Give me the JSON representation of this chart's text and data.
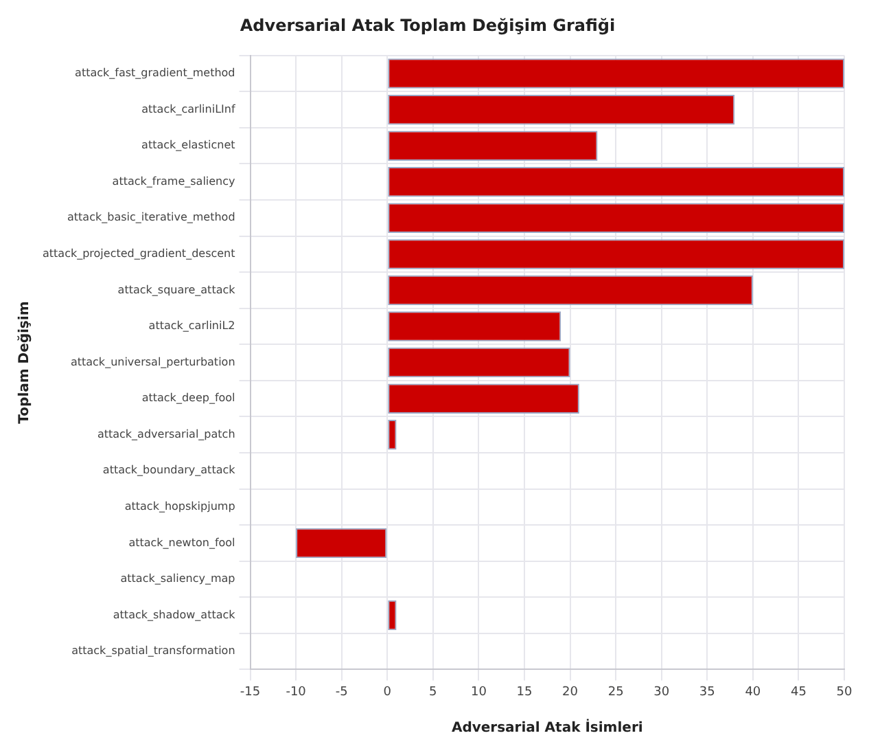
{
  "chart_data": {
    "type": "bar",
    "orientation": "horizontal",
    "title": "Adversarial Atak Toplam Değişim Grafiği",
    "xlabel": "Adversarial Atak İsimleri",
    "ylabel": "Toplam Değişim",
    "categories": [
      "attack_fast_gradient_method",
      "attack_carliniLInf",
      "attack_elasticnet",
      "attack_frame_saliency",
      "attack_basic_iterative_method",
      "attack_projected_gradient_descent",
      "attack_square_attack",
      "attack_carliniL2",
      "attack_universal_perturbation",
      "attack_deep_fool",
      "attack_adversarial_patch",
      "attack_boundary_attack",
      "attack_hopskipjump",
      "attack_newton_fool",
      "attack_saliency_map",
      "attack_shadow_attack",
      "attack_spatial_transformation"
    ],
    "values": [
      50,
      38,
      23,
      50,
      50,
      50,
      40,
      19,
      20,
      21,
      1,
      0,
      0,
      -10,
      0,
      1,
      0
    ],
    "color": "#cc0000",
    "xlim": [
      -15,
      50
    ],
    "xticks": [
      -15,
      -10,
      -5,
      0,
      5,
      10,
      15,
      20,
      25,
      30,
      35,
      40,
      45,
      50
    ],
    "grid": true
  }
}
